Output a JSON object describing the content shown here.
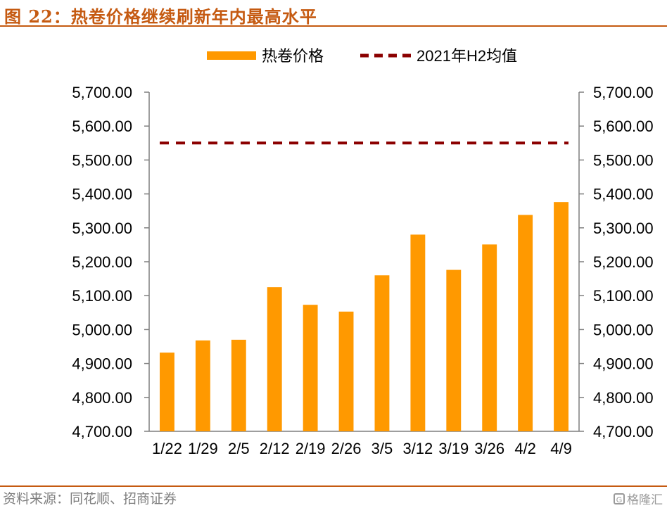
{
  "figure": {
    "title": "图 22：热卷价格继续刷新年内最高水平",
    "source": "资料来源：同花顺、招商证券",
    "watermark": "格隆汇"
  },
  "colors": {
    "accent": "#c55a11",
    "bar": "#ff9900",
    "reference_line": "#8b0000",
    "axis": "#7f7f7f"
  },
  "chart_data": {
    "type": "bar",
    "categories": [
      "1/22",
      "1/29",
      "2/5",
      "2/12",
      "2/19",
      "2/26",
      "3/5",
      "3/12",
      "3/19",
      "3/26",
      "4/2",
      "4/9"
    ],
    "series": [
      {
        "name": "热卷价格",
        "type": "bar",
        "values": [
          4932,
          4968,
          4970,
          5125,
          5073,
          5053,
          5160,
          5280,
          5176,
          5251,
          5338,
          5376
        ]
      },
      {
        "name": "2021年H2均值",
        "type": "line",
        "style": "dashed",
        "values": [
          5550,
          5550,
          5550,
          5550,
          5550,
          5550,
          5550,
          5550,
          5550,
          5550,
          5550,
          5550
        ]
      }
    ],
    "ylim": [
      4700,
      5700
    ],
    "yticks": [
      4700,
      4800,
      4900,
      5000,
      5100,
      5200,
      5300,
      5400,
      5500,
      5600,
      5700
    ],
    "ytick_labels": [
      "4,700.00",
      "4,800.00",
      "4,900.00",
      "5,000.00",
      "5,100.00",
      "5,200.00",
      "5,300.00",
      "5,400.00",
      "5,500.00",
      "5,600.00",
      "5,700.00"
    ],
    "secondary_y": true,
    "legend": {
      "position": "top",
      "entries": [
        "热卷价格",
        "2021年H2均值"
      ]
    },
    "grid": false
  }
}
